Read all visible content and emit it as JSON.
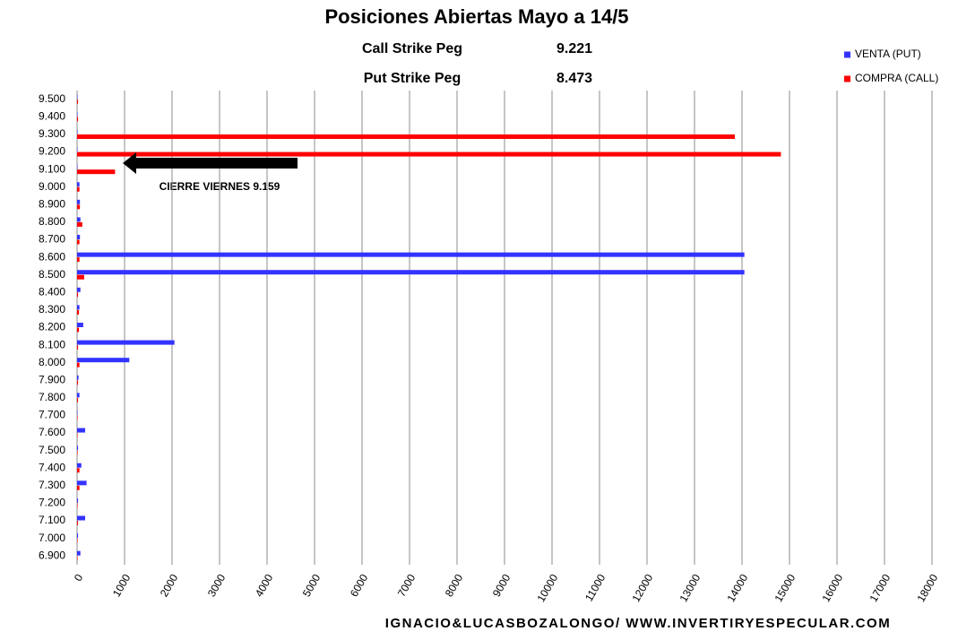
{
  "chart_data": {
    "type": "hbar",
    "title": "Posiciones Abiertas Mayo a 14/5",
    "annotations": [
      "Call Strike Peg",
      "9.221",
      "Put Strike Peg",
      "8.473",
      "CIERRE VIERNES 9.159"
    ],
    "footer": "IGNACIO&LUCASBOZALONGO/  WWW.INVERTIRYESPECULAR.COM",
    "categories": [
      "9.500",
      "9.400",
      "9.300",
      "9.200",
      "9.100",
      "9.000",
      "8.900",
      "8.800",
      "8.700",
      "8.600",
      "8.500",
      "8.400",
      "8.300",
      "8.200",
      "8.100",
      "8.000",
      "7.900",
      "7.800",
      "7.700",
      "7.600",
      "7.500",
      "7.400",
      "7.300",
      "7.200",
      "7.100",
      "7.000",
      "6.900"
    ],
    "series": [
      {
        "name": "VENTA (PUT)",
        "color": "#3333ff",
        "values": [
          10,
          10,
          10,
          10,
          10,
          50,
          60,
          70,
          60,
          14050,
          14050,
          70,
          50,
          130,
          2050,
          1100,
          30,
          50,
          10,
          170,
          20,
          90,
          200,
          20,
          170,
          20,
          70
        ]
      },
      {
        "name": "COMPRA (CALL)",
        "color": "#ff0000",
        "values": [
          20,
          20,
          13850,
          14820,
          800,
          50,
          60,
          110,
          50,
          50,
          150,
          20,
          40,
          40,
          20,
          50,
          20,
          20,
          10,
          10,
          10,
          50,
          50,
          10,
          20,
          10,
          10
        ]
      }
    ],
    "xlim": [
      0,
      18000
    ],
    "xticks": [
      0,
      1000,
      2000,
      3000,
      4000,
      5000,
      6000,
      7000,
      8000,
      9000,
      10000,
      11000,
      12000,
      13000,
      14000,
      15000,
      16000,
      17000,
      18000
    ],
    "grid": true,
    "legend": "top-right"
  }
}
